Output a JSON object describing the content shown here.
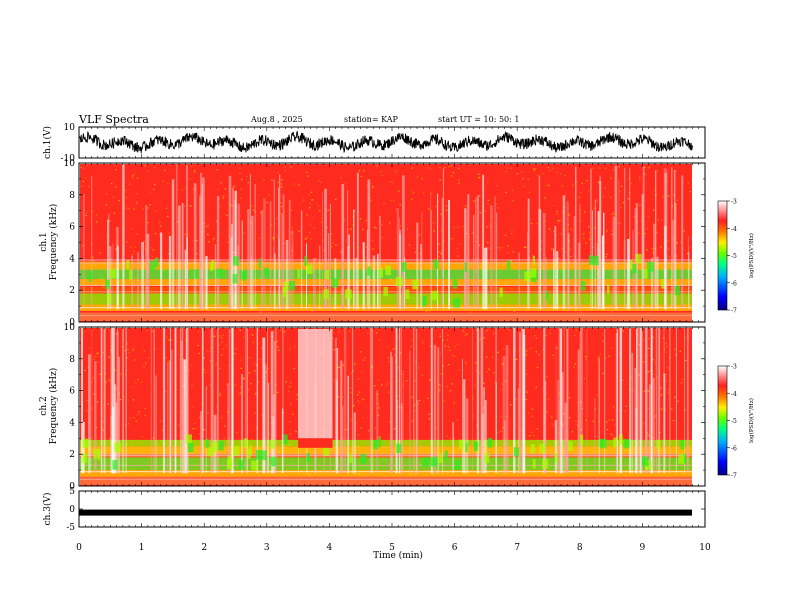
{
  "header": {
    "title": "VLF Spectra",
    "date": "Aug.8 , 2025",
    "station": "station= KAP",
    "start": "start UT = 10: 50: 1"
  },
  "colors": {
    "frame": "#000000",
    "cmap": [
      "#000080",
      "#0000ff",
      "#00aaff",
      "#00ff88",
      "#66ff00",
      "#ffee00",
      "#ff7700",
      "#ff2020",
      "#ffffff"
    ]
  },
  "chart_data": [
    {
      "type": "line",
      "name": "ch1-waveform",
      "ylabel": "ch.1(V)",
      "ylim": [
        -10,
        10
      ],
      "yticks": [
        "10",
        "-10"
      ],
      "xlim": [
        0,
        10
      ],
      "data_extent_min": 9.8,
      "description_series": "noisy black waveform oscillating roughly between -5 and 5 V"
    },
    {
      "type": "heatmap",
      "name": "ch1-spectrogram",
      "ylabel_top": "ch.1",
      "ylabel": "Frequency (kHz)",
      "ylim": [
        0,
        10
      ],
      "yticks": [
        "0",
        "2",
        "4",
        "6",
        "8",
        "10"
      ],
      "xlim": [
        0,
        10
      ],
      "colorbar": {
        "label": "log(PSD)(V²/Hz)",
        "range": [
          -7,
          -3
        ],
        "ticks": [
          "-3",
          "-4",
          "-5",
          "-6",
          "-7"
        ]
      },
      "bands_khz": [
        1.8,
        2.8,
        3.8
      ],
      "dominant_level": -4
    },
    {
      "type": "heatmap",
      "name": "ch2-spectrogram",
      "ylabel_top": "ch.2",
      "ylabel": "Frequency (kHz)",
      "ylim": [
        0,
        10
      ],
      "yticks": [
        "0",
        "2",
        "4",
        "6",
        "8",
        "10"
      ],
      "xlim": [
        0,
        10
      ],
      "colorbar": {
        "label": "log(PSD)(V²/Hz)",
        "range": [
          -7,
          -3
        ],
        "ticks": [
          "-3",
          "-4",
          "-5",
          "-6",
          "-7"
        ]
      },
      "bands_khz": [
        1.2,
        1.8,
        2.5
      ],
      "dominant_level": -4
    },
    {
      "type": "line",
      "name": "ch3-waveform",
      "ylabel": "ch.3(V)",
      "ylim": [
        -5,
        5
      ],
      "yticks": [
        "5",
        "0",
        "-5"
      ],
      "xlim": [
        0,
        10
      ],
      "constant_value": -1,
      "xlabel": "Time (min)",
      "xticks": [
        "0",
        "1",
        "2",
        "3",
        "4",
        "5",
        "6",
        "7",
        "8",
        "9",
        "10"
      ]
    }
  ]
}
